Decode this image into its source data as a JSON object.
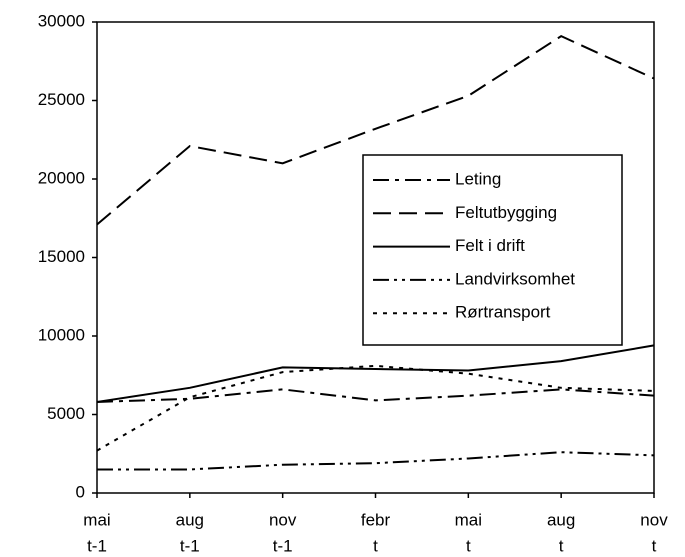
{
  "chart_data": {
    "type": "line",
    "categories": [
      [
        "mai",
        "t-1"
      ],
      [
        "aug",
        "t-1"
      ],
      [
        "nov",
        "t-1"
      ],
      [
        "febr",
        "t"
      ],
      [
        "mai",
        "t"
      ],
      [
        "aug",
        "t"
      ],
      [
        "nov",
        "t"
      ]
    ],
    "series": [
      {
        "name": "Leting",
        "color": "#000000",
        "style": "dash-dot",
        "values": [
          5800,
          6000,
          6600,
          5900,
          6200,
          6600,
          6200
        ]
      },
      {
        "name": "Feltutbygging",
        "color": "#000000",
        "style": "dash",
        "values": [
          17100,
          22100,
          21000,
          23200,
          25300,
          29100,
          26400
        ]
      },
      {
        "name": "Felt i drift",
        "color": "#000000",
        "style": "solid",
        "values": [
          5800,
          6700,
          8000,
          7900,
          7800,
          8400,
          9400
        ]
      },
      {
        "name": "Landvirksomhet",
        "color": "#000000",
        "style": "dash-dot-dot",
        "values": [
          1500,
          1500,
          1800,
          1900,
          2200,
          2600,
          2400
        ]
      },
      {
        "name": "Rørtransport",
        "color": "#000000",
        "style": "dot",
        "values": [
          2700,
          6100,
          7700,
          8100,
          7600,
          6700,
          6500
        ]
      }
    ],
    "ylim": [
      0,
      30000
    ],
    "yticks": [
      0,
      5000,
      10000,
      15000,
      20000,
      25000,
      30000
    ],
    "grid": false,
    "legend": "center-right"
  }
}
